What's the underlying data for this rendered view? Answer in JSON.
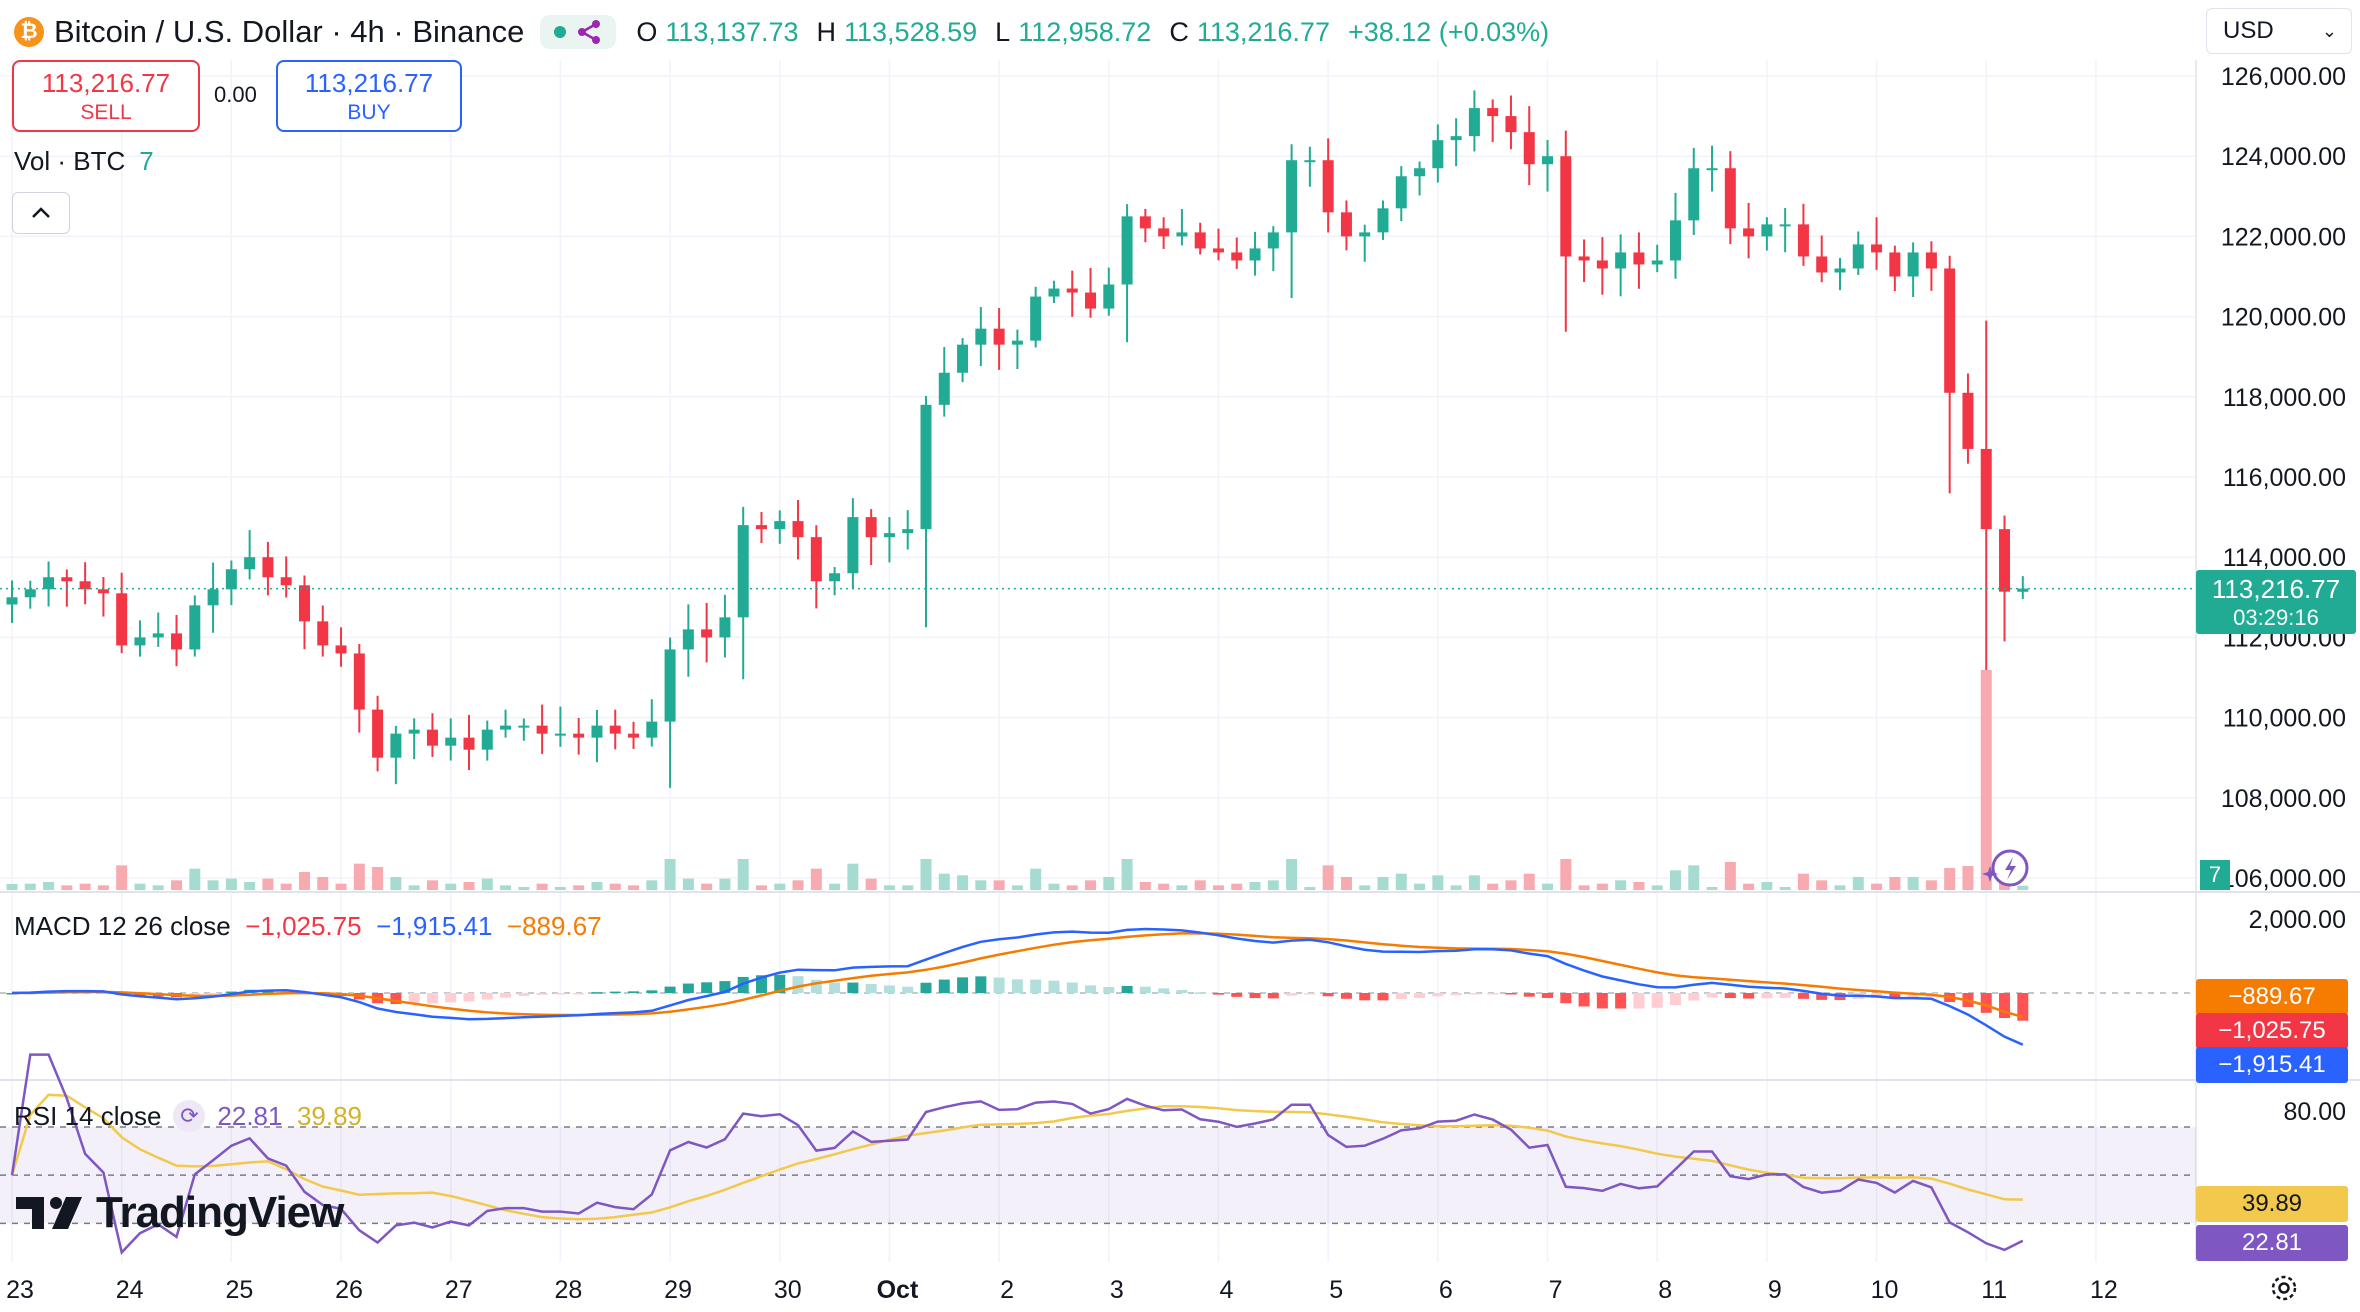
{
  "header": {
    "logo": "bitcoin-logo",
    "title": "Bitcoin / U.S. Dollar · 4h · Binance",
    "ohlc": {
      "o_label": "O",
      "o": "113,137.73",
      "h_label": "H",
      "h": "113,528.59",
      "l_label": "L",
      "l": "112,958.72",
      "c_label": "C",
      "c": "113,216.77",
      "change": "+38.12 (+0.03%)"
    }
  },
  "trade": {
    "sell_price": "113,216.77",
    "sell_label": "SELL",
    "spread": "0.00",
    "buy_price": "113,216.77",
    "buy_label": "BUY"
  },
  "volume_legend": {
    "label": "Vol · BTC",
    "value": "7"
  },
  "collapse_icon": "chevron-up-icon",
  "currency": "USD",
  "macd_legend": {
    "label": "MACD 12 26 close",
    "hist": "−1,025.75",
    "macd": "−1,915.41",
    "signal": "−889.67"
  },
  "rsi_legend": {
    "label": "RSI 14 close",
    "rsi": "22.81",
    "ma": "39.89"
  },
  "price_tag": {
    "price": "113,216.77",
    "countdown": "03:29:16"
  },
  "volume_tag": "7",
  "macd_tags": {
    "signal": "−889.67",
    "hist": "−1,025.75",
    "macd": "−1,915.41"
  },
  "rsi_tags": {
    "ma": "39.89",
    "rsi": "22.81"
  },
  "brand": "TradingView",
  "colors": {
    "up": "#22ab94",
    "down": "#f23645",
    "macd": "#2962ff",
    "signal": "#f57c00",
    "rsi": "#7e57c2",
    "rsi_ma": "#f2c94c"
  },
  "chart_data": {
    "type": "candlestick",
    "symbol": "BTCUSD",
    "interval": "4h",
    "price_axis": {
      "range": [
        106000,
        126000
      ],
      "ticks": [
        "126,000.00",
        "124,000.00",
        "122,000.00",
        "120,000.00",
        "118,000.00",
        "116,000.00",
        "114,000.00",
        "112,000.00",
        "110,000.00",
        "108,000.00",
        "106,000.00"
      ],
      "tick_values": [
        126000,
        124000,
        122000,
        120000,
        118000,
        116000,
        114000,
        112000,
        110000,
        108000,
        106000
      ]
    },
    "time_axis": {
      "labels": [
        "23",
        "24",
        "25",
        "26",
        "27",
        "28",
        "29",
        "30",
        "Oct",
        "2",
        "3",
        "4",
        "5",
        "6",
        "7",
        "8",
        "9",
        "10",
        "11",
        "12"
      ],
      "label_candle_index": [
        0,
        6,
        12,
        18,
        24,
        30,
        36,
        42,
        48,
        54,
        60,
        66,
        72,
        78,
        84,
        90,
        96,
        102,
        108,
        114
      ]
    },
    "last_price": 113216.77,
    "closes": [
      113000,
      113200,
      113500,
      113400,
      113200,
      113100,
      111800,
      112000,
      112100,
      111700,
      112800,
      113200,
      113700,
      114000,
      113500,
      113300,
      112400,
      111800,
      111600,
      110200,
      109000,
      109600,
      109700,
      109300,
      109500,
      109200,
      109700,
      109800,
      109800,
      109600,
      109600,
      109500,
      109800,
      109600,
      109500,
      109900,
      111700,
      112200,
      112000,
      112500,
      114800,
      114700,
      114900,
      114500,
      113400,
      113600,
      115000,
      114500,
      114600,
      114700,
      117800,
      118600,
      119300,
      119700,
      119300,
      119400,
      120500,
      120700,
      120600,
      120200,
      120800,
      122500,
      122200,
      122000,
      122100,
      121700,
      121600,
      121400,
      121700,
      122100,
      123900,
      123900,
      122600,
      122000,
      122100,
      122700,
      123500,
      123700,
      124400,
      124500,
      125200,
      125000,
      124600,
      123800,
      124000,
      121500,
      121400,
      121200,
      121600,
      121300,
      121400,
      122400,
      123700,
      123700,
      122200,
      122000,
      122300,
      122300,
      121500,
      121100,
      121200,
      121800,
      121600,
      121000,
      121600,
      121200,
      118100,
      116700,
      114700,
      113140,
      113217
    ],
    "series_note": "Closes start at Sep 23 00:00 UTC, one value per 4h candle; intermediate values are estimated from the chart.",
    "macd": {
      "label": "MACD 12 26 close",
      "values": {
        "histogram": -1025.75,
        "macd": -1915.41,
        "signal": -889.67
      },
      "axis_ticks": [
        "2,000.00"
      ]
    },
    "rsi": {
      "label": "RSI 14 close",
      "values": {
        "rsi": 22.81,
        "rsi_ma": 39.89
      },
      "axis_ticks": [
        "80.00"
      ],
      "bands": [
        70,
        50,
        30
      ]
    },
    "volume": {
      "label": "Vol · BTC",
      "last": 7
    }
  }
}
